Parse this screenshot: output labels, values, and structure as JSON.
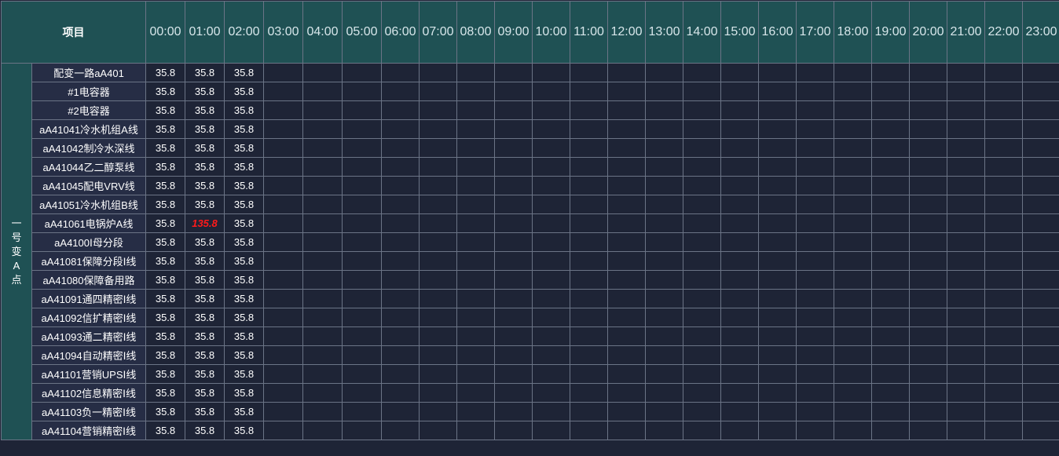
{
  "header": {
    "project_label": "项目",
    "hours": [
      "00:00",
      "01:00",
      "02:00",
      "03:00",
      "04:00",
      "05:00",
      "06:00",
      "07:00",
      "08:00",
      "09:00",
      "10:00",
      "11:00",
      "12:00",
      "13:00",
      "14:00",
      "15:00",
      "16:00",
      "17:00",
      "18:00",
      "19:00",
      "20:00",
      "21:00",
      "22:00",
      "23:00"
    ]
  },
  "group": {
    "label": "一号变A点"
  },
  "rows": [
    {
      "name": "配变一路aA401",
      "values": [
        "35.8",
        "35.8",
        "35.8"
      ]
    },
    {
      "name": "#1电容器",
      "values": [
        "35.8",
        "35.8",
        "35.8"
      ]
    },
    {
      "name": "#2电容器",
      "values": [
        "35.8",
        "35.8",
        "35.8"
      ]
    },
    {
      "name": "aA41041冷水机组A线",
      "values": [
        "35.8",
        "35.8",
        "35.8"
      ]
    },
    {
      "name": "aA41042制冷水深线",
      "values": [
        "35.8",
        "35.8",
        "35.8"
      ]
    },
    {
      "name": "aA41044乙二醇泵线",
      "values": [
        "35.8",
        "35.8",
        "35.8"
      ]
    },
    {
      "name": "aA41045配电VRV线",
      "values": [
        "35.8",
        "35.8",
        "35.8"
      ]
    },
    {
      "name": "aA41051冷水机组B线",
      "values": [
        "35.8",
        "35.8",
        "35.8"
      ]
    },
    {
      "name": "aA41061电锅炉A线",
      "values": [
        "35.8",
        "135.8",
        "35.8"
      ],
      "alarm_index": 1
    },
    {
      "name": "aA4100Ⅰ母分段",
      "values": [
        "35.8",
        "35.8",
        "35.8"
      ]
    },
    {
      "name": "aA41081保障分段Ⅰ线",
      "values": [
        "35.8",
        "35.8",
        "35.8"
      ]
    },
    {
      "name": "aA41080保障备用路",
      "values": [
        "35.8",
        "35.8",
        "35.8"
      ]
    },
    {
      "name": "aA41091通四精密Ⅰ线",
      "values": [
        "35.8",
        "35.8",
        "35.8"
      ]
    },
    {
      "name": "aA41092信扩精密Ⅰ线",
      "values": [
        "35.8",
        "35.8",
        "35.8"
      ]
    },
    {
      "name": "aA41093通二精密Ⅰ线",
      "values": [
        "35.8",
        "35.8",
        "35.8"
      ]
    },
    {
      "name": "aA41094自动精密Ⅰ线",
      "values": [
        "35.8",
        "35.8",
        "35.8"
      ]
    },
    {
      "name": "aA41101营销UPSⅠ线",
      "values": [
        "35.8",
        "35.8",
        "35.8"
      ]
    },
    {
      "name": "aA41102信息精密Ⅰ线",
      "values": [
        "35.8",
        "35.8",
        "35.8"
      ]
    },
    {
      "name": "aA41103负一精密Ⅰ线",
      "values": [
        "35.8",
        "35.8",
        "35.8"
      ]
    },
    {
      "name": "aA41104营销精密Ⅰ线",
      "values": [
        "35.8",
        "35.8",
        "35.8"
      ]
    }
  ],
  "colors": {
    "header_bg": "#1f5154",
    "label_bg": "#262d45",
    "cell_bg": "#1e2436",
    "alarm": "#ff1a1a"
  }
}
